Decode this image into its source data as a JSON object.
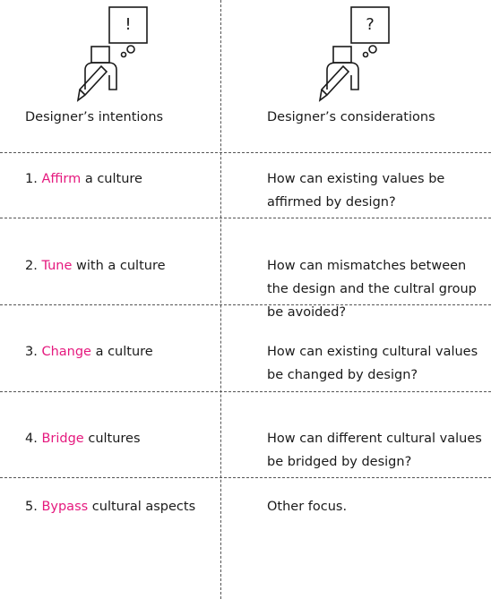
{
  "header": {
    "left": {
      "bubble": "!",
      "label": "Designer’s intentions"
    },
    "right": {
      "bubble": "?",
      "label": "Designer’s considerations"
    }
  },
  "rows": [
    {
      "number": "1.",
      "keyword": "Affirm",
      "rest": "a culture",
      "consideration": "How can existing values be affirmed by design?"
    },
    {
      "number": "2.",
      "keyword": "Tune",
      "rest": "with a culture",
      "consideration": "How can mismatches between the design and the cultral group be avoided?"
    },
    {
      "number": "3.",
      "keyword": "Change",
      "rest": "a culture",
      "consideration": "How can existing cultural values be changed by design?"
    },
    {
      "number": "4.",
      "keyword": "Bridge",
      "rest": "cultures",
      "consideration": "How can different cultural values be bridged by design?"
    },
    {
      "number": "5.",
      "keyword": "Bypass",
      "rest": "cultural aspects",
      "consideration": "Other focus."
    }
  ]
}
